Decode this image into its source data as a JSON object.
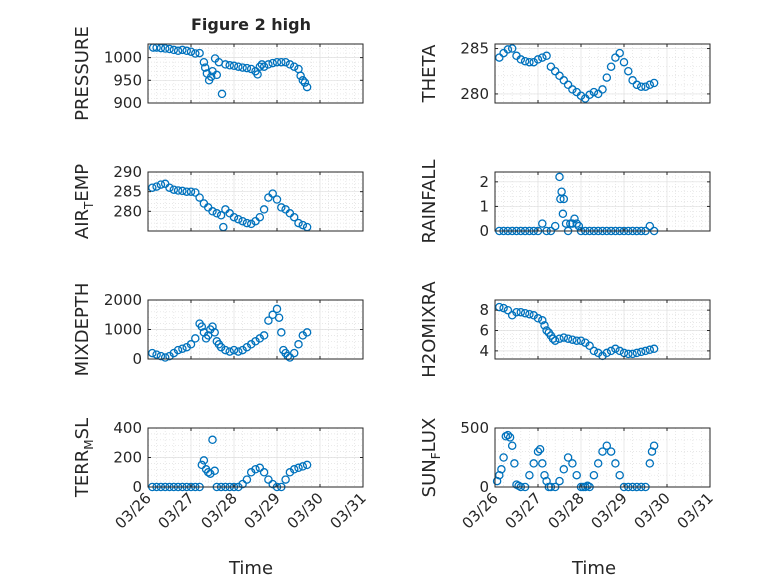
{
  "figure": {
    "title": "Figure 2 high",
    "xlabel": "Time",
    "marker_color": "#0072BD",
    "grid_color": "#dfdfdf"
  },
  "chart_data": [
    {
      "type": "scatter",
      "ylabel": "PRESSURE",
      "xlim": [
        0,
        5
      ],
      "ylim": [
        900,
        1030
      ],
      "yticks": [
        900,
        950,
        1000
      ],
      "xtick_labels": [
        "03/26",
        "03/27",
        "03/28",
        "03/29",
        "03/30",
        "03/31"
      ],
      "show_xticklabels": false,
      "grid": true,
      "x": [
        0.12,
        0.2,
        0.3,
        0.4,
        0.5,
        0.6,
        0.7,
        0.8,
        0.9,
        1.0,
        1.1,
        1.2,
        1.3,
        1.33,
        1.37,
        1.42,
        1.47,
        1.5,
        1.56,
        1.6,
        1.65,
        1.72,
        1.8,
        1.9,
        2.0,
        2.1,
        2.2,
        2.3,
        2.4,
        2.5,
        2.55,
        2.6,
        2.65,
        2.7,
        2.8,
        2.9,
        3.0,
        3.1,
        3.2,
        3.3,
        3.4,
        3.5,
        3.55,
        3.6,
        3.65,
        3.7
      ],
      "y": [
        1022,
        1022,
        1021,
        1020,
        1019,
        1017,
        1015,
        1017,
        1015,
        1013,
        1009,
        1010,
        990,
        978,
        965,
        950,
        958,
        970,
        998,
        962,
        990,
        920,
        985,
        983,
        982,
        980,
        978,
        977,
        975,
        970,
        963,
        980,
        985,
        980,
        985,
        988,
        990,
        990,
        990,
        985,
        980,
        975,
        960,
        950,
        945,
        935
      ]
    },
    {
      "type": "scatter",
      "ylabel": "THETA",
      "xlim": [
        0,
        5
      ],
      "ylim": [
        279,
        285.5
      ],
      "yticks": [
        280,
        285
      ],
      "xtick_labels": [
        "03/26",
        "03/27",
        "03/28",
        "03/29",
        "03/30",
        "03/31"
      ],
      "show_xticklabels": false,
      "grid": true,
      "x": [
        0.1,
        0.2,
        0.3,
        0.4,
        0.5,
        0.6,
        0.7,
        0.8,
        0.9,
        1.0,
        1.1,
        1.2,
        1.3,
        1.4,
        1.5,
        1.6,
        1.7,
        1.8,
        1.9,
        2.0,
        2.1,
        2.2,
        2.3,
        2.4,
        2.5,
        2.6,
        2.7,
        2.8,
        2.9,
        3.0,
        3.1,
        3.2,
        3.3,
        3.4,
        3.5,
        3.6,
        3.7
      ],
      "y": [
        284.0,
        284.5,
        284.9,
        285.0,
        284.2,
        283.8,
        283.6,
        283.5,
        283.5,
        283.8,
        284.0,
        284.2,
        283.0,
        282.5,
        282.0,
        281.5,
        281.0,
        280.5,
        280.2,
        279.8,
        279.5,
        279.9,
        280.2,
        280.0,
        280.5,
        281.8,
        283.0,
        284.0,
        284.5,
        283.5,
        282.5,
        281.5,
        281.0,
        280.8,
        280.8,
        281.0,
        281.2
      ]
    },
    {
      "type": "scatter",
      "ylabel": "AIR_TEMP",
      "xlim": [
        0,
        5
      ],
      "ylim": [
        275,
        290
      ],
      "yticks": [
        280,
        285,
        290
      ],
      "xtick_labels": [
        "03/26",
        "03/27",
        "03/28",
        "03/29",
        "03/30",
        "03/31"
      ],
      "show_xticklabels": false,
      "grid": true,
      "x": [
        0.1,
        0.2,
        0.3,
        0.4,
        0.5,
        0.6,
        0.7,
        0.8,
        0.9,
        1.0,
        1.1,
        1.2,
        1.3,
        1.4,
        1.5,
        1.6,
        1.7,
        1.75,
        1.8,
        1.9,
        2.0,
        2.1,
        2.2,
        2.3,
        2.4,
        2.5,
        2.6,
        2.7,
        2.8,
        2.9,
        3.0,
        3.1,
        3.2,
        3.3,
        3.4,
        3.5,
        3.6,
        3.7
      ],
      "y": [
        286.0,
        286.3,
        286.8,
        287.0,
        286.0,
        285.5,
        285.3,
        285.2,
        285.0,
        285.0,
        284.8,
        283.5,
        282.0,
        281.0,
        280.0,
        279.5,
        279.0,
        276.0,
        280.5,
        279.5,
        278.5,
        278.0,
        277.5,
        277.0,
        276.8,
        277.5,
        278.5,
        280.5,
        283.5,
        284.5,
        283.0,
        281.0,
        280.5,
        279.5,
        278.5,
        277.0,
        276.5,
        276.0
      ]
    },
    {
      "type": "scatter",
      "ylabel": "RAINFALL",
      "xlim": [
        0,
        5
      ],
      "ylim": [
        0,
        2.4
      ],
      "yticks": [
        0,
        1,
        2
      ],
      "xtick_labels": [
        "03/26",
        "03/27",
        "03/28",
        "03/29",
        "03/30",
        "03/31"
      ],
      "show_xticklabels": false,
      "grid": true,
      "x": [
        0.1,
        0.2,
        0.3,
        0.4,
        0.5,
        0.6,
        0.7,
        0.8,
        0.9,
        1.0,
        1.1,
        1.2,
        1.3,
        1.4,
        1.5,
        1.52,
        1.55,
        1.58,
        1.6,
        1.65,
        1.7,
        1.75,
        1.8,
        1.85,
        1.9,
        1.95,
        2.0,
        2.1,
        2.2,
        2.3,
        2.4,
        2.5,
        2.6,
        2.7,
        2.8,
        2.9,
        3.0,
        3.1,
        3.2,
        3.3,
        3.4,
        3.5,
        3.6,
        3.7
      ],
      "y": [
        0,
        0,
        0,
        0,
        0,
        0,
        0,
        0,
        0,
        0,
        0.3,
        0,
        0,
        0.2,
        2.2,
        1.3,
        1.6,
        0.7,
        1.3,
        0.3,
        0,
        0.3,
        0.3,
        0.5,
        0.3,
        0.2,
        0,
        0,
        0,
        0,
        0,
        0,
        0,
        0,
        0,
        0,
        0,
        0,
        0,
        0,
        0,
        0,
        0.2,
        0
      ]
    },
    {
      "type": "scatter",
      "ylabel": "MIXDEPTH",
      "xlim": [
        0,
        5
      ],
      "ylim": [
        0,
        2000
      ],
      "yticks": [
        0,
        1000,
        2000
      ],
      "xtick_labels": [
        "03/26",
        "03/27",
        "03/28",
        "03/29",
        "03/30",
        "03/31"
      ],
      "show_xticklabels": false,
      "grid": true,
      "x": [
        0.1,
        0.2,
        0.3,
        0.4,
        0.5,
        0.6,
        0.7,
        0.8,
        0.9,
        1.0,
        1.1,
        1.2,
        1.25,
        1.3,
        1.35,
        1.4,
        1.45,
        1.5,
        1.55,
        1.6,
        1.65,
        1.7,
        1.8,
        1.9,
        2.0,
        2.1,
        2.2,
        2.3,
        2.4,
        2.5,
        2.6,
        2.7,
        2.8,
        2.9,
        3.0,
        3.05,
        3.1,
        3.15,
        3.2,
        3.25,
        3.3,
        3.4,
        3.5,
        3.6,
        3.7
      ],
      "y": [
        200,
        150,
        100,
        50,
        100,
        200,
        300,
        350,
        400,
        500,
        700,
        1200,
        1100,
        900,
        700,
        800,
        1000,
        1100,
        900,
        600,
        500,
        400,
        300,
        250,
        300,
        250,
        300,
        400,
        500,
        600,
        700,
        800,
        1300,
        1500,
        1700,
        1400,
        900,
        300,
        200,
        100,
        50,
        200,
        500,
        800,
        900
      ]
    },
    {
      "type": "scatter",
      "ylabel": "H2OMIXRA",
      "xlim": [
        0,
        5
      ],
      "ylim": [
        3.2,
        9
      ],
      "yticks": [
        4,
        6,
        8
      ],
      "xtick_labels": [
        "03/26",
        "03/27",
        "03/28",
        "03/29",
        "03/30",
        "03/31"
      ],
      "show_xticklabels": false,
      "grid": true,
      "x": [
        0.1,
        0.2,
        0.3,
        0.4,
        0.5,
        0.6,
        0.7,
        0.8,
        0.9,
        1.0,
        1.1,
        1.15,
        1.2,
        1.25,
        1.3,
        1.35,
        1.4,
        1.5,
        1.6,
        1.7,
        1.8,
        1.9,
        2.0,
        2.1,
        2.2,
        2.3,
        2.4,
        2.5,
        2.6,
        2.7,
        2.8,
        2.9,
        3.0,
        3.1,
        3.2,
        3.3,
        3.4,
        3.5,
        3.6,
        3.7
      ],
      "y": [
        8.3,
        8.2,
        8.0,
        7.5,
        7.8,
        7.8,
        7.7,
        7.6,
        7.5,
        7.2,
        7.0,
        6.5,
        6.0,
        5.8,
        5.5,
        5.2,
        5.0,
        5.2,
        5.3,
        5.2,
        5.1,
        5.0,
        5.0,
        4.8,
        4.5,
        4.0,
        3.8,
        3.5,
        3.8,
        4.0,
        4.2,
        4.0,
        3.8,
        3.7,
        3.7,
        3.8,
        3.9,
        4.0,
        4.1,
        4.2
      ]
    },
    {
      "type": "scatter",
      "ylabel": "TERR_MSL",
      "xlim": [
        0,
        5
      ],
      "ylim": [
        0,
        400
      ],
      "yticks": [
        0,
        200,
        400
      ],
      "xtick_labels": [
        "03/26",
        "03/27",
        "03/28",
        "03/29",
        "03/30",
        "03/31"
      ],
      "show_xticklabels": true,
      "grid": true,
      "x": [
        0.1,
        0.2,
        0.3,
        0.4,
        0.5,
        0.6,
        0.7,
        0.8,
        0.9,
        1.0,
        1.1,
        1.2,
        1.25,
        1.3,
        1.35,
        1.4,
        1.45,
        1.5,
        1.55,
        1.6,
        1.7,
        1.8,
        1.9,
        2.0,
        2.1,
        2.2,
        2.3,
        2.4,
        2.5,
        2.6,
        2.7,
        2.8,
        2.9,
        3.0,
        3.1,
        3.2,
        3.3,
        3.4,
        3.5,
        3.6,
        3.7
      ],
      "y": [
        0,
        0,
        0,
        0,
        0,
        0,
        0,
        0,
        0,
        0,
        0,
        0,
        150,
        180,
        120,
        100,
        90,
        320,
        110,
        0,
        0,
        0,
        0,
        0,
        0,
        20,
        50,
        100,
        120,
        130,
        100,
        50,
        20,
        0,
        0,
        50,
        100,
        120,
        130,
        140,
        150
      ]
    },
    {
      "type": "scatter",
      "ylabel": "SUN_FLUX",
      "xlim": [
        0,
        5
      ],
      "ylim": [
        0,
        500
      ],
      "yticks": [
        0,
        500
      ],
      "xtick_labels": [
        "03/26",
        "03/27",
        "03/28",
        "03/29",
        "03/30",
        "03/31"
      ],
      "show_xticklabels": true,
      "grid": true,
      "x": [
        0.05,
        0.1,
        0.15,
        0.2,
        0.25,
        0.3,
        0.35,
        0.4,
        0.45,
        0.5,
        0.55,
        0.6,
        0.7,
        0.8,
        0.9,
        1.0,
        1.05,
        1.1,
        1.15,
        1.2,
        1.25,
        1.3,
        1.4,
        1.5,
        1.6,
        1.7,
        1.8,
        1.9,
        2.0,
        2.05,
        2.1,
        2.15,
        2.2,
        2.3,
        2.4,
        2.5,
        2.6,
        2.7,
        2.8,
        2.9,
        3.0,
        3.1,
        3.2,
        3.3,
        3.4,
        3.5,
        3.6,
        3.65,
        3.7
      ],
      "y": [
        50,
        100,
        150,
        250,
        430,
        440,
        420,
        350,
        200,
        20,
        10,
        0,
        0,
        100,
        200,
        300,
        320,
        200,
        100,
        50,
        0,
        0,
        0,
        50,
        150,
        250,
        200,
        100,
        0,
        0,
        0,
        10,
        0,
        100,
        200,
        300,
        350,
        300,
        200,
        100,
        0,
        0,
        0,
        0,
        0,
        0,
        200,
        300,
        350
      ]
    }
  ],
  "panel_labels": [
    {
      "main": "PRESSURE"
    },
    {
      "main": "THETA"
    },
    {
      "main": "AIR",
      "sub": "T",
      "rest": "EMP"
    },
    {
      "main": "RAINFALL"
    },
    {
      "main": "MIXDEPTH"
    },
    {
      "main": "H2OMIXRA"
    },
    {
      "main": "TERR",
      "sub": "M",
      "rest": "SL"
    },
    {
      "main": "SUN",
      "sub": "F",
      "rest": "LUX"
    }
  ]
}
